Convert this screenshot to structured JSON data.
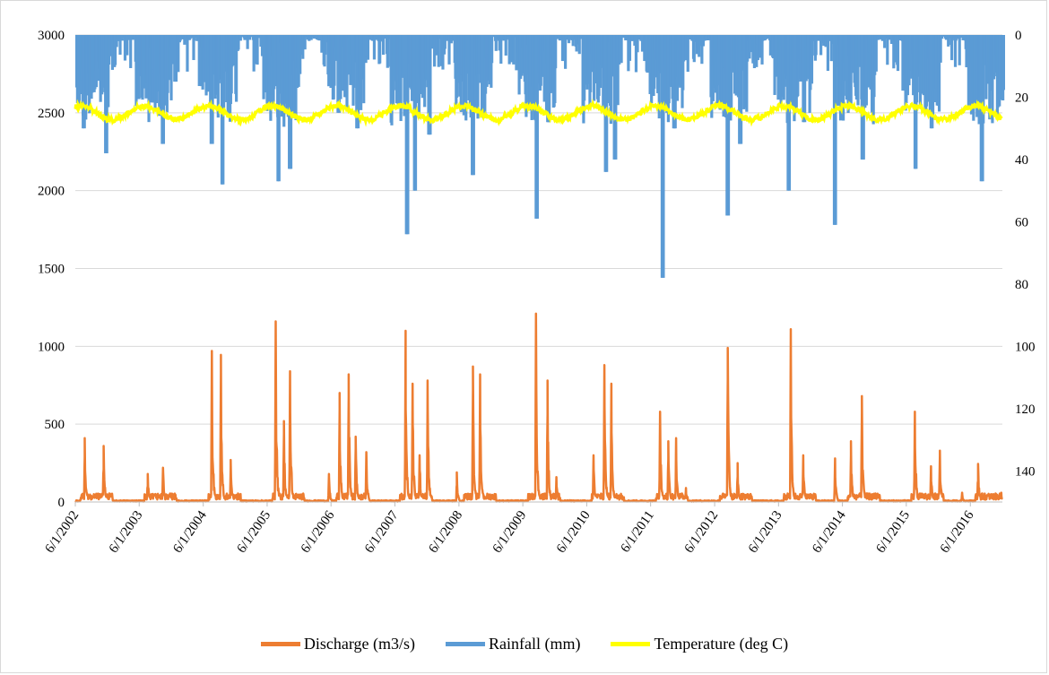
{
  "chart_data": {
    "type": "line",
    "title": "",
    "xlabel": "",
    "ylabel_left": "",
    "ylabel_right": "",
    "x_tick_labels": [
      "6/1/2002",
      "6/1/2003",
      "6/1/2004",
      "6/1/2005",
      "6/1/2006",
      "6/1/2007",
      "6/1/2008",
      "6/1/2009",
      "6/1/2010",
      "6/1/2011",
      "6/1/2012",
      "6/1/2013",
      "6/1/2014",
      "6/1/2015",
      "6/1/2016"
    ],
    "x_range": [
      "6/1/2002",
      "12/1/2016"
    ],
    "y_left": {
      "min": 0,
      "max": 3000,
      "ticks": [
        0,
        500,
        1000,
        1500,
        2000,
        2500,
        3000
      ]
    },
    "y_right": {
      "min": 0,
      "max": 150,
      "reversed": true,
      "ticks": [
        0,
        20,
        40,
        60,
        80,
        100,
        120,
        140
      ]
    },
    "grid": "horizontal",
    "legend_position": "bottom",
    "series": [
      {
        "name": "Discharge (m3/s)",
        "axis": "left",
        "color": "#ed7d31",
        "peaks": [
          {
            "date": "2002-07-25",
            "value": 410
          },
          {
            "date": "2002-11-10",
            "value": 360
          },
          {
            "date": "2003-07-20",
            "value": 180
          },
          {
            "date": "2003-10-15",
            "value": 220
          },
          {
            "date": "2004-07-20",
            "value": 970
          },
          {
            "date": "2004-09-10",
            "value": 945
          },
          {
            "date": "2004-11-05",
            "value": 270
          },
          {
            "date": "2005-07-20",
            "value": 1160
          },
          {
            "date": "2005-09-05",
            "value": 520
          },
          {
            "date": "2005-10-10",
            "value": 840
          },
          {
            "date": "2006-05-20",
            "value": 180
          },
          {
            "date": "2006-07-20",
            "value": 700
          },
          {
            "date": "2006-09-10",
            "value": 820
          },
          {
            "date": "2006-10-20",
            "value": 420
          },
          {
            "date": "2006-12-20",
            "value": 320
          },
          {
            "date": "2007-08-01",
            "value": 1100
          },
          {
            "date": "2007-09-10",
            "value": 760
          },
          {
            "date": "2007-10-20",
            "value": 300
          },
          {
            "date": "2007-12-05",
            "value": 780
          },
          {
            "date": "2008-05-20",
            "value": 190
          },
          {
            "date": "2008-08-20",
            "value": 870
          },
          {
            "date": "2008-09-30",
            "value": 820
          },
          {
            "date": "2009-08-15",
            "value": 1210
          },
          {
            "date": "2009-10-20",
            "value": 780
          },
          {
            "date": "2009-12-10",
            "value": 160
          },
          {
            "date": "2010-07-10",
            "value": 300
          },
          {
            "date": "2010-09-10",
            "value": 880
          },
          {
            "date": "2010-10-20",
            "value": 760
          },
          {
            "date": "2011-07-25",
            "value": 580
          },
          {
            "date": "2011-09-10",
            "value": 390
          },
          {
            "date": "2011-10-25",
            "value": 410
          },
          {
            "date": "2011-12-20",
            "value": 90
          },
          {
            "date": "2012-08-15",
            "value": 990
          },
          {
            "date": "2012-10-10",
            "value": 250
          },
          {
            "date": "2013-08-10",
            "value": 1110
          },
          {
            "date": "2013-10-20",
            "value": 300
          },
          {
            "date": "2014-04-20",
            "value": 280
          },
          {
            "date": "2014-07-20",
            "value": 390
          },
          {
            "date": "2014-09-20",
            "value": 680
          },
          {
            "date": "2015-07-20",
            "value": 580
          },
          {
            "date": "2015-10-20",
            "value": 230
          },
          {
            "date": "2015-12-10",
            "value": 330
          },
          {
            "date": "2016-04-15",
            "value": 60
          },
          {
            "date": "2016-07-15",
            "value": 245
          },
          {
            "date": "2016-11-25",
            "value": 60
          }
        ]
      },
      {
        "name": "Rainfall (mm)",
        "axis": "right",
        "color": "#5b9bd5",
        "peaks": [
          {
            "date": "2002-07-15",
            "value": 30
          },
          {
            "date": "2002-11-20",
            "value": 38
          },
          {
            "date": "2003-10-10",
            "value": 35
          },
          {
            "date": "2003-12-20",
            "value": 15
          },
          {
            "date": "2004-07-15",
            "value": 35
          },
          {
            "date": "2004-09-15",
            "value": 48
          },
          {
            "date": "2005-08-01",
            "value": 47
          },
          {
            "date": "2005-10-05",
            "value": 43
          },
          {
            "date": "2006-07-10",
            "value": 25
          },
          {
            "date": "2006-10-25",
            "value": 30
          },
          {
            "date": "2007-08-05",
            "value": 64
          },
          {
            "date": "2007-09-20",
            "value": 50
          },
          {
            "date": "2007-12-10",
            "value": 32
          },
          {
            "date": "2008-08-15",
            "value": 45
          },
          {
            "date": "2008-10-10",
            "value": 25
          },
          {
            "date": "2009-08-15",
            "value": 59
          },
          {
            "date": "2009-10-20",
            "value": 28
          },
          {
            "date": "2010-09-15",
            "value": 44
          },
          {
            "date": "2010-11-05",
            "value": 40
          },
          {
            "date": "2011-08-05",
            "value": 78
          },
          {
            "date": "2011-10-10",
            "value": 30
          },
          {
            "date": "2012-08-10",
            "value": 58
          },
          {
            "date": "2012-10-20",
            "value": 35
          },
          {
            "date": "2013-07-25",
            "value": 50
          },
          {
            "date": "2013-10-20",
            "value": 28
          },
          {
            "date": "2014-04-15",
            "value": 61
          },
          {
            "date": "2014-09-20",
            "value": 40
          },
          {
            "date": "2015-07-20",
            "value": 43
          },
          {
            "date": "2015-10-20",
            "value": 30
          },
          {
            "date": "2016-08-01",
            "value": 47
          },
          {
            "date": "2016-11-20",
            "value": 20
          }
        ]
      },
      {
        "name": "Temperature (deg C)",
        "axis": "right",
        "color": "#ffff00",
        "min": 21,
        "max": 29,
        "mean": 25,
        "note_period": "annual cycle"
      }
    ]
  }
}
